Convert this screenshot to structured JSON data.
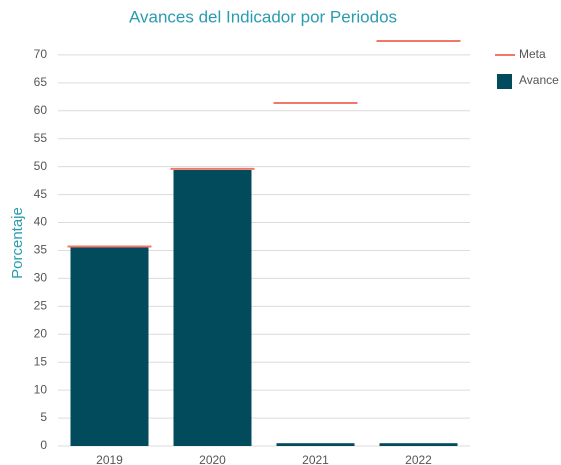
{
  "chart_data": {
    "type": "bar",
    "title": "Avances del Indicador por Periodos",
    "y_label": "Porcentaje",
    "categories": [
      "2019",
      "2020",
      "2021",
      "2022"
    ],
    "series": [
      {
        "name": "Meta",
        "color": "#f07868",
        "values": [
          35.7,
          49.6,
          61.4,
          72.5
        ]
      },
      {
        "name": "Avance",
        "color": "#024b5c",
        "values": [
          35.6,
          49.4,
          0.5,
          0.5
        ]
      }
    ],
    "ylim": [
      0,
      75
    ],
    "yticks": [
      0,
      5,
      10,
      15,
      20,
      25,
      30,
      35,
      40,
      45,
      50,
      55,
      60,
      65,
      70
    ],
    "grid": true
  }
}
